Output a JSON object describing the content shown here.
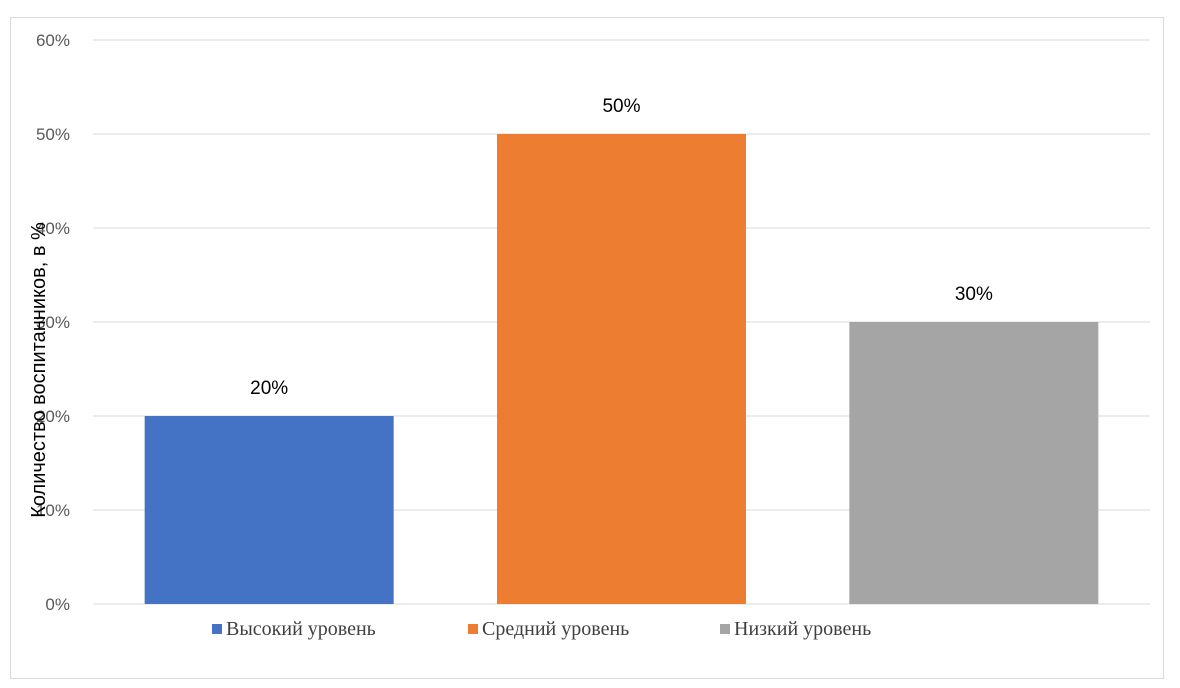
{
  "chart_data": {
    "type": "bar",
    "categories": [
      "Высокий уровень",
      "Средний уровень",
      "Низкий уровень"
    ],
    "values": [
      20,
      50,
      30
    ],
    "data_labels": [
      "20%",
      "50%",
      "30%"
    ],
    "colors": [
      "#4472C4",
      "#ED7D31",
      "#A5A5A5"
    ],
    "ylabel": "Количество воспитанников, в %",
    "xlabel": "",
    "ylim": [
      0,
      60
    ],
    "yticks": [
      {
        "value": 0,
        "label": "0%"
      },
      {
        "value": 10,
        "label": "10%"
      },
      {
        "value": 20,
        "label": "20%"
      },
      {
        "value": 30,
        "label": "30%"
      },
      {
        "value": 40,
        "label": "40%"
      },
      {
        "value": 50,
        "label": "50%"
      },
      {
        "value": 60,
        "label": "60%"
      }
    ],
    "grid": true,
    "legend_position": "bottom"
  }
}
